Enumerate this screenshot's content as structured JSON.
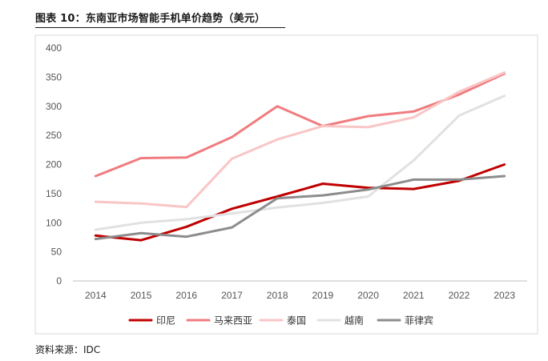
{
  "figure": {
    "title": "图表 10：东南亚市场智能手机单价趋势（美元）",
    "source": "资料来源：IDC"
  },
  "chart_data": {
    "type": "line",
    "title": "图表 10：东南亚市场智能手机单价趋势（美元）",
    "xlabel": "",
    "ylabel": "",
    "x": [
      "2014",
      "2015",
      "2016",
      "2017",
      "2018",
      "2019",
      "2020",
      "2021",
      "2022",
      "2023"
    ],
    "ylim": [
      0,
      400
    ],
    "yticks": [
      0,
      50,
      100,
      150,
      200,
      250,
      300,
      350,
      400
    ],
    "grid": false,
    "legend_position": "bottom",
    "series": [
      {
        "name": "印尼",
        "color": "#c00000",
        "values": [
          78,
          70,
          93,
          124,
          145,
          167,
          160,
          158,
          172,
          200
        ]
      },
      {
        "name": "马来西亚",
        "color": "#f07c7f",
        "values": [
          180,
          211,
          212,
          247,
          300,
          266,
          283,
          291,
          320,
          356
        ]
      },
      {
        "name": "泰国",
        "color": "#f9c6c6",
        "values": [
          136,
          133,
          127,
          210,
          243,
          266,
          264,
          281,
          325,
          358
        ]
      },
      {
        "name": "越南",
        "color": "#e1e1e1",
        "values": [
          88,
          100,
          106,
          116,
          126,
          134,
          145,
          207,
          284,
          318
        ]
      },
      {
        "name": "菲律宾",
        "color": "#8c8c8c",
        "values": [
          72,
          82,
          76,
          92,
          142,
          147,
          157,
          174,
          174,
          180
        ]
      }
    ]
  }
}
